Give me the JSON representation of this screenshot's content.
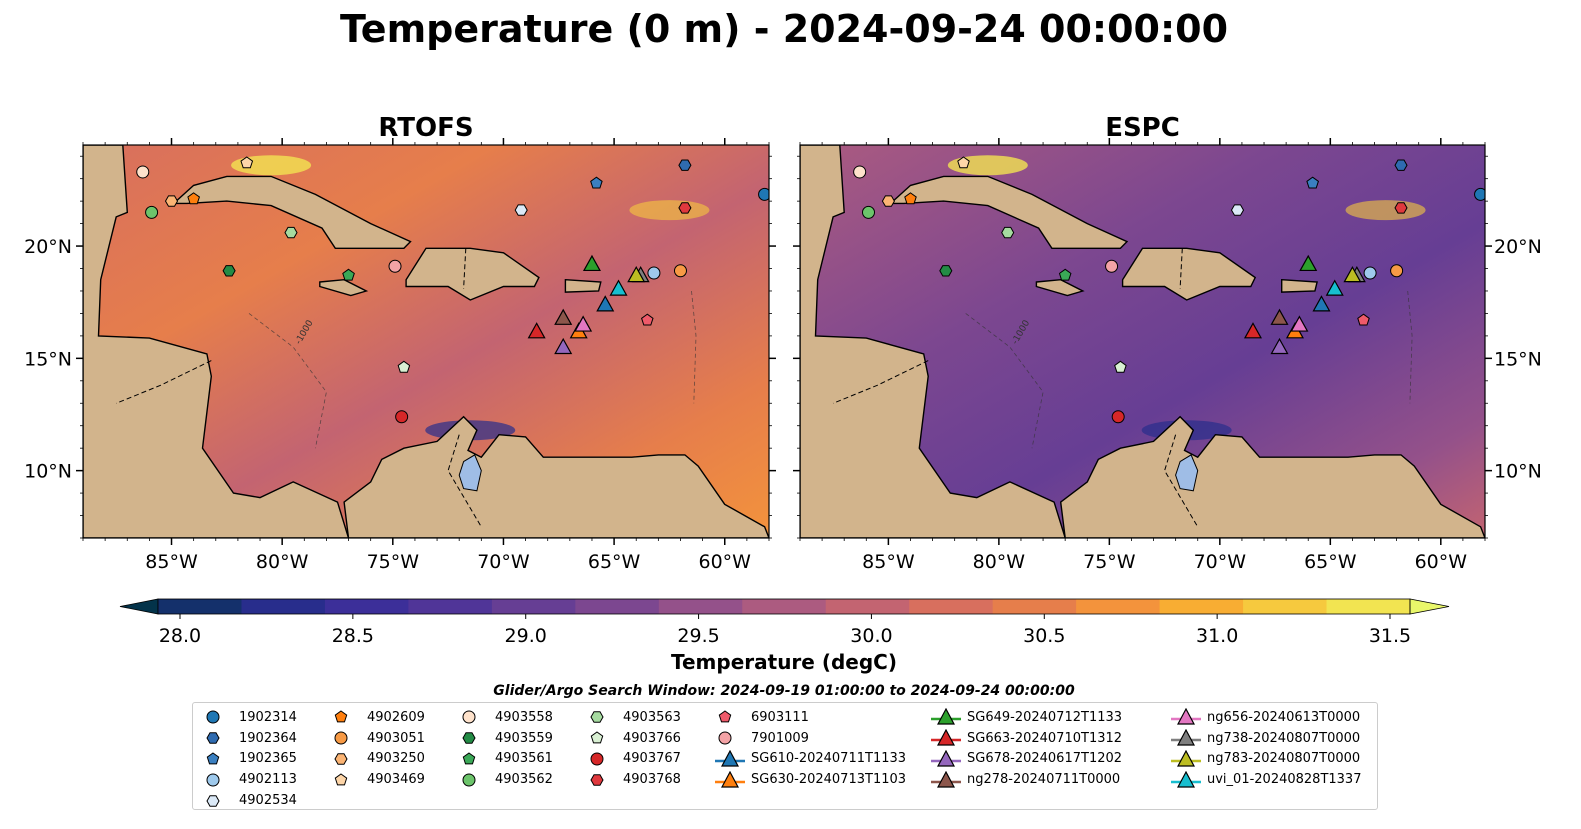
{
  "figure": {
    "suptitle": "Temperature (0 m) - 2024-09-24 00:00:00",
    "colorbar_label": "Temperature (degC)",
    "window_text": "Glider/Argo Search Window: 2024-09-19 01:00:00 to 2024-09-24 00:00:00"
  },
  "chart_data": {
    "type": "heatmap",
    "panels": [
      "RTOFS",
      "ESPC"
    ],
    "lon_range": [
      -89,
      -58
    ],
    "lat_range": [
      7,
      24.5
    ],
    "xticks": [
      -85,
      -80,
      -75,
      -70,
      -65,
      -60
    ],
    "xtick_labels": [
      "85°W",
      "80°W",
      "75°W",
      "70°W",
      "65°W",
      "60°W"
    ],
    "yticks": [
      10,
      15,
      20
    ],
    "ytick_labels": [
      "10°N",
      "15°N",
      "20°N"
    ],
    "colorbar": {
      "min": 28.0,
      "max": 31.5,
      "extend": "both",
      "ticks": [
        28.0,
        28.5,
        29.0,
        29.5,
        30.0,
        30.5,
        31.0,
        31.5
      ],
      "tick_labels": [
        "28.0",
        "28.5",
        "29.0",
        "29.5",
        "30.0",
        "30.5",
        "31.0",
        "31.5"
      ],
      "colors": [
        "#03334a",
        "#14306b",
        "#282d8c",
        "#3c2f99",
        "#503598",
        "#663e94",
        "#7c4790",
        "#94518a",
        "#ac5b80",
        "#c36471",
        "#d86f5e",
        "#e67e4b",
        "#f3933c",
        "#f8ad33",
        "#f6c93e",
        "#f2e451",
        "#e9f76a"
      ]
    },
    "contour_label": "-1000",
    "argo_floats": [
      {
        "id": "1902314",
        "lon": -58.2,
        "lat": 22.3,
        "marker": "circle",
        "color": "#1f77b4"
      },
      {
        "id": "1902364",
        "lon": -61.8,
        "lat": 23.6,
        "marker": "hexagon",
        "color": "#2f6bb0"
      },
      {
        "id": "1902365",
        "lon": -65.8,
        "lat": 22.8,
        "marker": "pentagon",
        "color": "#3a7fc0"
      },
      {
        "id": "4902113",
        "lon": -63.2,
        "lat": 18.8,
        "marker": "circle",
        "color": "#9ec9ec"
      },
      {
        "id": "4902534",
        "lon": -69.2,
        "lat": 21.6,
        "marker": "hexagon",
        "color": "#dbe9f7"
      },
      {
        "id": "4902609",
        "lon": -84.0,
        "lat": 22.1,
        "marker": "pentagon",
        "color": "#ff7f0e"
      },
      {
        "id": "4903051",
        "lon": -62.0,
        "lat": 18.9,
        "marker": "circle",
        "color": "#f79a45"
      },
      {
        "id": "4903250",
        "lon": -85.0,
        "lat": 22.0,
        "marker": "hexagon",
        "color": "#fbb474"
      },
      {
        "id": "4903469",
        "lon": -81.6,
        "lat": 23.7,
        "marker": "pentagon",
        "color": "#fdd5a8"
      },
      {
        "id": "4903558",
        "lon": -86.3,
        "lat": 23.3,
        "marker": "circle",
        "color": "#fee2cb"
      },
      {
        "id": "4903559",
        "lon": -82.4,
        "lat": 18.9,
        "marker": "hexagon",
        "color": "#238b45"
      },
      {
        "id": "4903561",
        "lon": -77.0,
        "lat": 18.7,
        "marker": "pentagon",
        "color": "#3aa857"
      },
      {
        "id": "4903562",
        "lon": -85.9,
        "lat": 21.5,
        "marker": "circle",
        "color": "#6cc46b"
      },
      {
        "id": "4903563",
        "lon": -79.6,
        "lat": 20.6,
        "marker": "hexagon",
        "color": "#a6dba0"
      },
      {
        "id": "4903766",
        "lon": -74.5,
        "lat": 14.6,
        "marker": "pentagon",
        "color": "#d9f0d3"
      },
      {
        "id": "4903767",
        "lon": -74.6,
        "lat": 12.4,
        "marker": "circle",
        "color": "#d62728"
      },
      {
        "id": "4903768",
        "lon": -61.8,
        "lat": 21.7,
        "marker": "hexagon",
        "color": "#e0393e"
      },
      {
        "id": "6903111",
        "lon": -63.5,
        "lat": 16.7,
        "marker": "pentagon",
        "color": "#ef5a6a"
      },
      {
        "id": "7901009",
        "lon": -74.9,
        "lat": 19.1,
        "marker": "circle",
        "color": "#f4a3a6"
      }
    ],
    "gliders": [
      {
        "id": "SG610-20240711T1133",
        "lon": -65.4,
        "lat": 17.4,
        "color": "#1f77b4"
      },
      {
        "id": "SG630-20240713T1103",
        "lon": -66.6,
        "lat": 16.2,
        "color": "#ff7f0e"
      },
      {
        "id": "SG649-20240712T1133",
        "lon": -66.0,
        "lat": 19.2,
        "color": "#2ca02c"
      },
      {
        "id": "SG663-20240710T1312",
        "lon": -68.5,
        "lat": 16.2,
        "color": "#d62728"
      },
      {
        "id": "SG678-20240617T1202",
        "lon": -67.3,
        "lat": 15.5,
        "color": "#9467bd"
      },
      {
        "id": "ng278-20240711T0000",
        "lon": -67.3,
        "lat": 16.8,
        "color": "#8c564b"
      },
      {
        "id": "ng656-20240613T0000",
        "lon": -66.4,
        "lat": 16.5,
        "color": "#e377c2"
      },
      {
        "id": "ng738-20240807T0000",
        "lon": -63.8,
        "lat": 18.7,
        "color": "#7f7f7f"
      },
      {
        "id": "ng783-20240807T0000",
        "lon": -64.0,
        "lat": 18.7,
        "color": "#bcbd22"
      },
      {
        "id": "uvi_01-20240828T1337",
        "lon": -64.8,
        "lat": 18.1,
        "color": "#17becf"
      }
    ]
  }
}
